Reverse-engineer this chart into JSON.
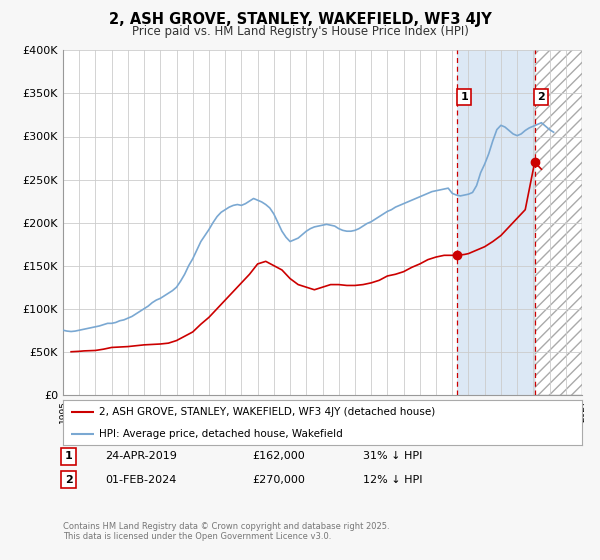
{
  "title": "2, ASH GROVE, STANLEY, WAKEFIELD, WF3 4JY",
  "subtitle": "Price paid vs. HM Land Registry's House Price Index (HPI)",
  "background_color": "#f7f7f7",
  "plot_bg_color": "#ffffff",
  "shaded_region_color": "#dce8f5",
  "grid_color": "#cccccc",
  "red_line_color": "#cc0000",
  "blue_line_color": "#7aa8d2",
  "xmin": 1995,
  "xmax": 2027,
  "ymin": 0,
  "ymax": 400000,
  "yticks": [
    0,
    50000,
    100000,
    150000,
    200000,
    250000,
    300000,
    350000,
    400000
  ],
  "ytick_labels": [
    "£0",
    "£50K",
    "£100K",
    "£150K",
    "£200K",
    "£250K",
    "£300K",
    "£350K",
    "£400K"
  ],
  "xticks": [
    1995,
    1996,
    1997,
    1998,
    1999,
    2000,
    2001,
    2002,
    2003,
    2004,
    2005,
    2006,
    2007,
    2008,
    2009,
    2010,
    2011,
    2012,
    2013,
    2014,
    2015,
    2016,
    2017,
    2018,
    2019,
    2020,
    2021,
    2022,
    2023,
    2024,
    2025,
    2026,
    2027
  ],
  "marker1_x": 2019.31,
  "marker1_y": 162000,
  "marker1_label": "1",
  "marker1_date": "24-APR-2019",
  "marker1_price": "£162,000",
  "marker1_hpi": "31% ↓ HPI",
  "marker2_x": 2024.08,
  "marker2_y": 270000,
  "marker2_label": "2",
  "marker2_date": "01-FEB-2024",
  "marker2_price": "£270,000",
  "marker2_hpi": "12% ↓ HPI",
  "vline1_x": 2019.31,
  "vline2_x": 2024.08,
  "shade_start": 2019.31,
  "shade_end": 2024.08,
  "hatch_start": 2024.08,
  "hatch_end": 2027,
  "legend_label_red": "2, ASH GROVE, STANLEY, WAKEFIELD, WF3 4JY (detached house)",
  "legend_label_blue": "HPI: Average price, detached house, Wakefield",
  "footer_text": "Contains HM Land Registry data © Crown copyright and database right 2025.\nThis data is licensed under the Open Government Licence v3.0.",
  "hpi_data_x": [
    1995.0,
    1995.25,
    1995.5,
    1995.75,
    1996.0,
    1996.25,
    1996.5,
    1996.75,
    1997.0,
    1997.25,
    1997.5,
    1997.75,
    1998.0,
    1998.25,
    1998.5,
    1998.75,
    1999.0,
    1999.25,
    1999.5,
    1999.75,
    2000.0,
    2000.25,
    2000.5,
    2000.75,
    2001.0,
    2001.25,
    2001.5,
    2001.75,
    2002.0,
    2002.25,
    2002.5,
    2002.75,
    2003.0,
    2003.25,
    2003.5,
    2003.75,
    2004.0,
    2004.25,
    2004.5,
    2004.75,
    2005.0,
    2005.25,
    2005.5,
    2005.75,
    2006.0,
    2006.25,
    2006.5,
    2006.75,
    2007.0,
    2007.25,
    2007.5,
    2007.75,
    2008.0,
    2008.25,
    2008.5,
    2008.75,
    2009.0,
    2009.25,
    2009.5,
    2009.75,
    2010.0,
    2010.25,
    2010.5,
    2010.75,
    2011.0,
    2011.25,
    2011.5,
    2011.75,
    2012.0,
    2012.25,
    2012.5,
    2012.75,
    2013.0,
    2013.25,
    2013.5,
    2013.75,
    2014.0,
    2014.25,
    2014.5,
    2014.75,
    2015.0,
    2015.25,
    2015.5,
    2015.75,
    2016.0,
    2016.25,
    2016.5,
    2016.75,
    2017.0,
    2017.25,
    2017.5,
    2017.75,
    2018.0,
    2018.25,
    2018.5,
    2018.75,
    2019.0,
    2019.25,
    2019.5,
    2019.75,
    2020.0,
    2020.25,
    2020.5,
    2020.75,
    2021.0,
    2021.25,
    2021.5,
    2021.75,
    2022.0,
    2022.25,
    2022.5,
    2022.75,
    2023.0,
    2023.25,
    2023.5,
    2023.75,
    2024.0,
    2024.25,
    2024.5,
    2024.75,
    2025.0,
    2025.25
  ],
  "hpi_data_y": [
    75000,
    74000,
    73500,
    74000,
    75000,
    76000,
    77000,
    78000,
    79000,
    80000,
    81500,
    83000,
    83000,
    84000,
    86000,
    87000,
    89000,
    91000,
    94000,
    97000,
    100000,
    103000,
    107000,
    110000,
    112000,
    115000,
    118000,
    121000,
    125000,
    132000,
    140000,
    150000,
    158000,
    168000,
    178000,
    185000,
    192000,
    200000,
    207000,
    212000,
    215000,
    218000,
    220000,
    221000,
    220000,
    222000,
    225000,
    228000,
    226000,
    224000,
    221000,
    217000,
    210000,
    200000,
    190000,
    183000,
    178000,
    180000,
    182000,
    186000,
    190000,
    193000,
    195000,
    196000,
    197000,
    198000,
    197000,
    196000,
    193000,
    191000,
    190000,
    190000,
    191000,
    193000,
    196000,
    199000,
    201000,
    204000,
    207000,
    210000,
    213000,
    215000,
    218000,
    220000,
    222000,
    224000,
    226000,
    228000,
    230000,
    232000,
    234000,
    236000,
    237000,
    238000,
    239000,
    240000,
    234000,
    232000,
    231000,
    232000,
    233000,
    235000,
    243000,
    258000,
    268000,
    280000,
    295000,
    308000,
    313000,
    311000,
    307000,
    303000,
    301000,
    303000,
    307000,
    310000,
    312000,
    314000,
    316000,
    312000,
    308000,
    305000
  ],
  "red_data_x": [
    1995.5,
    1996.0,
    1996.3,
    1997.0,
    1997.5,
    1998.0,
    1999.0,
    2000.0,
    2001.0,
    2001.5,
    2002.0,
    2002.5,
    2003.0,
    2003.5,
    2004.0,
    2004.5,
    2005.0,
    2005.5,
    2006.0,
    2006.5,
    2007.0,
    2007.5,
    2008.0,
    2008.5,
    2009.0,
    2009.5,
    2010.0,
    2010.5,
    2011.0,
    2011.5,
    2012.0,
    2012.5,
    2013.0,
    2013.5,
    2014.0,
    2014.5,
    2015.0,
    2015.5,
    2016.0,
    2016.5,
    2017.0,
    2017.5,
    2018.0,
    2018.5,
    2019.31,
    2019.75,
    2020.0,
    2020.5,
    2021.0,
    2021.5,
    2022.0,
    2022.5,
    2023.0,
    2023.5,
    2024.08,
    2024.5
  ],
  "red_data_y": [
    50000,
    50500,
    51000,
    51500,
    53000,
    55000,
    56000,
    58000,
    59000,
    60000,
    63000,
    68000,
    73000,
    82000,
    90000,
    100000,
    110000,
    120000,
    130000,
    140000,
    152000,
    155000,
    150000,
    145000,
    135000,
    128000,
    125000,
    122000,
    125000,
    128000,
    128000,
    127000,
    127000,
    128000,
    130000,
    133000,
    138000,
    140000,
    143000,
    148000,
    152000,
    157000,
    160000,
    162000,
    162000,
    163000,
    164000,
    168000,
    172000,
    178000,
    185000,
    195000,
    205000,
    215000,
    270000,
    262000
  ]
}
